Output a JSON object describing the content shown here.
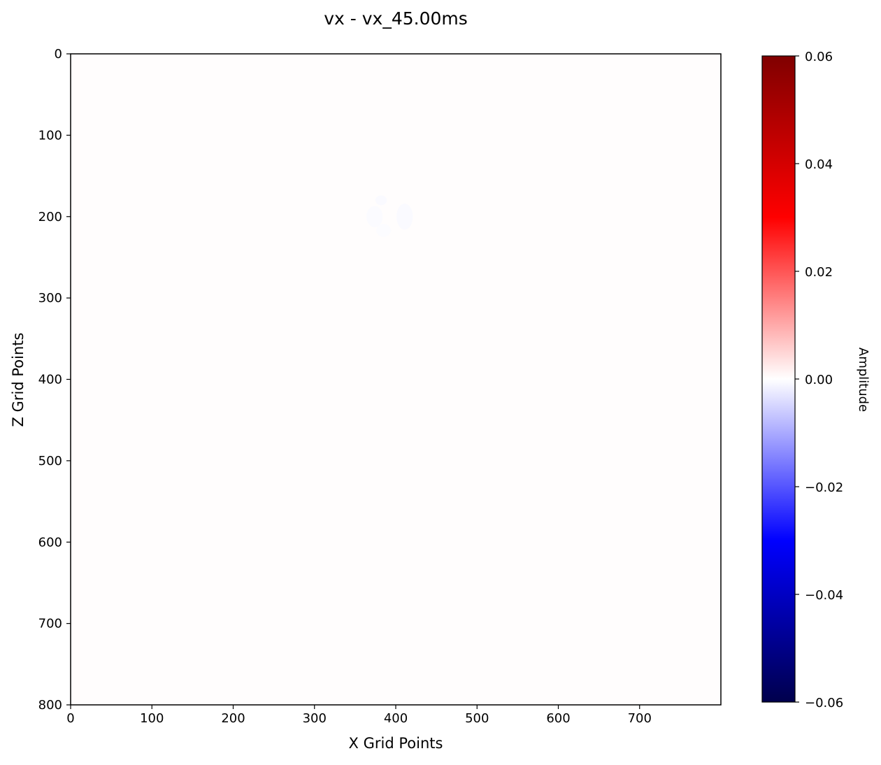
{
  "chart_data": {
    "type": "heatmap",
    "title": "vx - vx_45.00ms",
    "xlabel": "X Grid Points",
    "ylabel": "Z Grid Points",
    "xlim": [
      0,
      800
    ],
    "ylim": [
      800,
      0
    ],
    "x_ticks": [
      0,
      100,
      200,
      300,
      400,
      500,
      600,
      700
    ],
    "y_ticks": [
      0,
      100,
      200,
      300,
      400,
      500,
      600,
      700,
      800
    ],
    "background_value": 0.0002,
    "features": [
      {
        "x": 382,
        "z": 180,
        "rx": 7,
        "rz": 6,
        "value": -0.0006
      },
      {
        "x": 374,
        "z": 200,
        "rx": 10,
        "rz": 13,
        "value": -0.0005
      },
      {
        "x": 411,
        "z": 200,
        "rx": 10,
        "rz": 16,
        "value": -0.0006
      },
      {
        "x": 385,
        "z": 217,
        "rx": 9,
        "rz": 8,
        "value": -0.0004
      }
    ],
    "colorbar": {
      "label": "Amplitude",
      "colormap": "seismic",
      "vmin": -0.06,
      "vmax": 0.06,
      "ticks": [
        0.06,
        0.04,
        0.02,
        0.0,
        -0.02,
        -0.04,
        -0.06
      ],
      "tick_labels": [
        "0.06",
        "0.04",
        "0.02",
        "0.00",
        "−0.02",
        "−0.04",
        "−0.06"
      ]
    }
  }
}
